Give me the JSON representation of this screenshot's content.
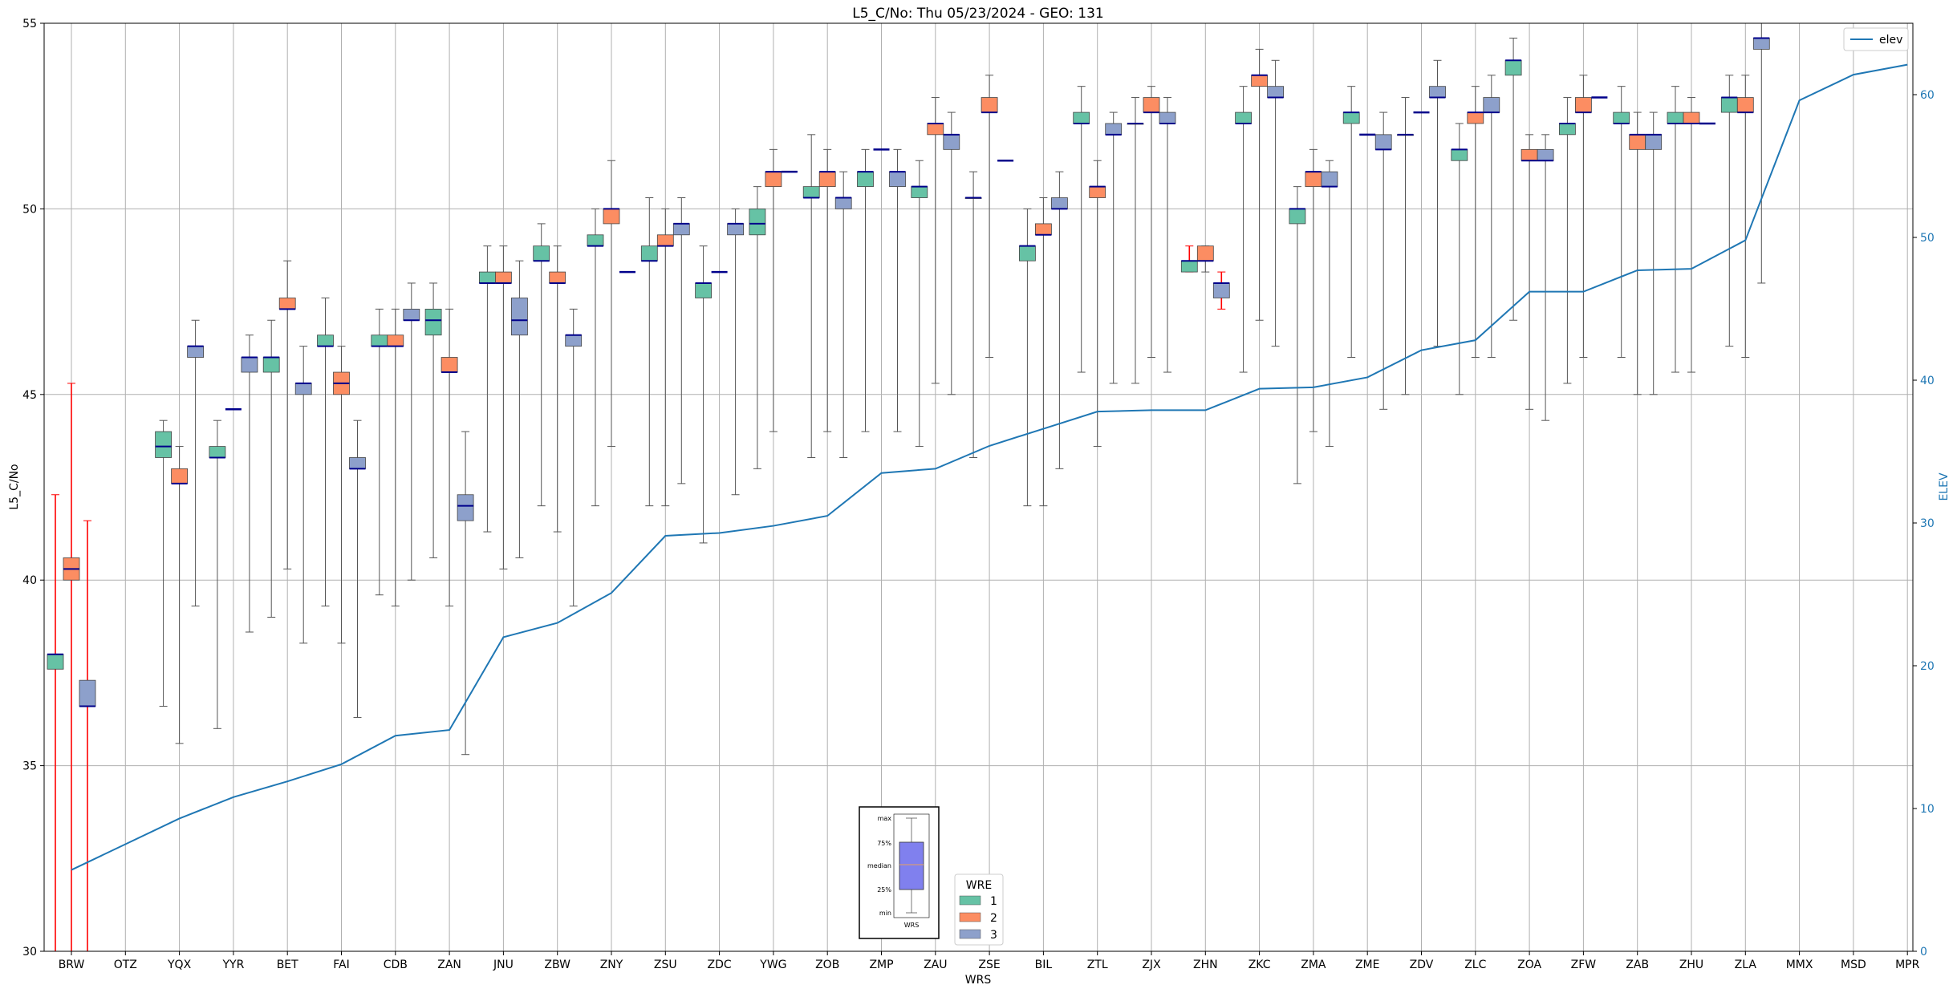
{
  "chart_data": {
    "type": "box",
    "title": "L5_C/No: Thu 05/23/2024 - GEO: 131",
    "xlabel": "WRS",
    "ylabel": "L5_C/No",
    "y2label": "ELEV",
    "ylim": [
      30,
      55
    ],
    "y2lim": [
      0,
      65
    ],
    "yticks": [
      30,
      35,
      40,
      45,
      50,
      55
    ],
    "y2ticks": [
      0,
      10,
      20,
      30,
      40,
      50,
      60
    ],
    "grid": true,
    "categories": [
      "BRW",
      "OTZ",
      "YQX",
      "YYR",
      "BET",
      "FAI",
      "CDB",
      "ZAN",
      "JNU",
      "ZBW",
      "ZNY",
      "ZSU",
      "ZDC",
      "YWG",
      "ZOB",
      "ZMP",
      "ZAU",
      "ZSE",
      "BIL",
      "ZTL",
      "ZJX",
      "ZHN",
      "ZKC",
      "ZMA",
      "ZME",
      "ZDV",
      "ZLC",
      "ZOA",
      "ZFW",
      "ZAB",
      "ZHU",
      "ZLA",
      "MMX",
      "MSD",
      "MPR"
    ],
    "colors": {
      "wre1": "#66c2a5",
      "wre2": "#fc8d62",
      "wre3": "#8da0cb",
      "median": "#00008b",
      "whisker": "#555555",
      "whisker_alert": "#ff0000",
      "elev": "#1f77b4",
      "inset_box": "#8080ee",
      "grid": "#b0b0b0"
    },
    "legend_elev": {
      "label": "elev",
      "position": "upper-right"
    },
    "legend_wre": {
      "title": "WRE",
      "labels": [
        "1",
        "2",
        "3"
      ],
      "position": "lower-center"
    },
    "inset_legend": {
      "labels": [
        "max",
        "75%",
        "median",
        "25%",
        "min"
      ],
      "xlabel": "WRS"
    },
    "series": [
      {
        "name": "WRE 1",
        "boxes": [
          {
            "cat": "BRW",
            "min": 30,
            "q1": 37.6,
            "median": 38.0,
            "q3": 38.0,
            "max": 42.3,
            "alert": true
          },
          {
            "cat": "YQX",
            "min": 36.6,
            "q1": 43.3,
            "median": 43.6,
            "q3": 44.0,
            "max": 44.3
          },
          {
            "cat": "YYR",
            "min": 36.0,
            "q1": 43.3,
            "median": 43.3,
            "q3": 43.6,
            "max": 44.3
          },
          {
            "cat": "BET",
            "min": 39.0,
            "q1": 45.6,
            "median": 46.0,
            "q3": 46.0,
            "max": 47.0
          },
          {
            "cat": "FAI",
            "min": 39.3,
            "q1": 46.3,
            "median": 46.3,
            "q3": 46.6,
            "max": 47.6
          },
          {
            "cat": "CDB",
            "min": 39.6,
            "q1": 46.3,
            "median": 46.3,
            "q3": 46.6,
            "max": 47.3
          },
          {
            "cat": "ZAN",
            "min": 40.6,
            "q1": 46.6,
            "median": 47.0,
            "q3": 47.3,
            "max": 48.0
          },
          {
            "cat": "JNU",
            "min": 41.3,
            "q1": 48.0,
            "median": 48.0,
            "q3": 48.3,
            "max": 49.0
          },
          {
            "cat": "ZBW",
            "min": 42.0,
            "q1": 48.6,
            "median": 48.6,
            "q3": 49.0,
            "max": 49.6
          },
          {
            "cat": "ZNY",
            "min": 42.0,
            "q1": 49.0,
            "median": 49.0,
            "q3": 49.3,
            "max": 50.0
          },
          {
            "cat": "ZSU",
            "min": 42.0,
            "q1": 48.6,
            "median": 48.6,
            "q3": 49.0,
            "max": 50.3
          },
          {
            "cat": "ZDC",
            "min": 41.0,
            "q1": 47.6,
            "median": 48.0,
            "q3": 48.0,
            "max": 49.0
          },
          {
            "cat": "YWG",
            "min": 43.0,
            "q1": 49.3,
            "median": 49.6,
            "q3": 50.0,
            "max": 50.6
          },
          {
            "cat": "ZOB",
            "min": 43.3,
            "q1": 50.3,
            "median": 50.3,
            "q3": 50.6,
            "max": 52.0
          },
          {
            "cat": "ZMP",
            "min": 44.0,
            "q1": 50.6,
            "median": 51.0,
            "q3": 51.0,
            "max": 51.6
          },
          {
            "cat": "ZAU",
            "min": 43.6,
            "q1": 50.3,
            "median": 50.6,
            "q3": 50.6,
            "max": 51.3
          },
          {
            "cat": "ZSE",
            "min": 43.3,
            "q1": 50.3,
            "median": 50.3,
            "q3": 50.3,
            "max": 51.0
          },
          {
            "cat": "BIL",
            "min": 42.0,
            "q1": 48.6,
            "median": 49.0,
            "q3": 49.0,
            "max": 50.0
          },
          {
            "cat": "ZTL",
            "min": 45.6,
            "q1": 52.3,
            "median": 52.3,
            "q3": 52.6,
            "max": 53.3
          },
          {
            "cat": "ZJX",
            "min": 45.3,
            "q1": 52.3,
            "median": 52.3,
            "q3": 52.3,
            "max": 53.0
          },
          {
            "cat": "ZHN",
            "min": 48.3,
            "q1": 48.3,
            "median": 48.6,
            "q3": 48.6,
            "max": 49.0,
            "alert": true
          },
          {
            "cat": "ZKC",
            "min": 45.6,
            "q1": 52.3,
            "median": 52.3,
            "q3": 52.6,
            "max": 53.3
          },
          {
            "cat": "ZMA",
            "min": 42.6,
            "q1": 49.6,
            "median": 50.0,
            "q3": 50.0,
            "max": 50.6
          },
          {
            "cat": "ZME",
            "min": 46.0,
            "q1": 52.3,
            "median": 52.6,
            "q3": 52.6,
            "max": 53.3
          },
          {
            "cat": "ZDV",
            "min": 45.0,
            "q1": 52.0,
            "median": 52.0,
            "q3": 52.0,
            "max": 53.0
          },
          {
            "cat": "ZLC",
            "min": 45.0,
            "q1": 51.3,
            "median": 51.6,
            "q3": 51.6,
            "max": 52.3
          },
          {
            "cat": "ZOA",
            "min": 47.0,
            "q1": 53.6,
            "median": 54.0,
            "q3": 54.0,
            "max": 54.6
          },
          {
            "cat": "ZFW",
            "min": 45.3,
            "q1": 52.0,
            "median": 52.3,
            "q3": 52.3,
            "max": 53.0
          },
          {
            "cat": "ZAB",
            "min": 46.0,
            "q1": 52.3,
            "median": 52.3,
            "q3": 52.6,
            "max": 53.3
          },
          {
            "cat": "ZHU",
            "min": 45.6,
            "q1": 52.3,
            "median": 52.3,
            "q3": 52.6,
            "max": 53.3
          },
          {
            "cat": "ZLA",
            "min": 46.3,
            "q1": 52.6,
            "median": 53.0,
            "q3": 53.0,
            "max": 53.6
          }
        ]
      },
      {
        "name": "WRE 2",
        "boxes": [
          {
            "cat": "BRW",
            "min": 30,
            "q1": 40.0,
            "median": 40.3,
            "q3": 40.6,
            "max": 45.3,
            "alert": true
          },
          {
            "cat": "YQX",
            "min": 35.6,
            "q1": 42.6,
            "median": 42.6,
            "q3": 43.0,
            "max": 43.6
          },
          {
            "cat": "BET",
            "min": 40.3,
            "q1": 47.3,
            "median": 47.3,
            "q3": 47.6,
            "max": 48.6
          },
          {
            "cat": "FAI",
            "min": 38.3,
            "q1": 45.0,
            "median": 45.3,
            "q3": 45.6,
            "max": 46.3
          },
          {
            "cat": "CDB",
            "min": 39.3,
            "q1": 46.3,
            "median": 46.3,
            "q3": 46.6,
            "max": 47.3
          },
          {
            "cat": "ZAN",
            "min": 39.3,
            "q1": 45.6,
            "median": 45.6,
            "q3": 46.0,
            "max": 47.3
          },
          {
            "cat": "JNU",
            "min": 40.3,
            "q1": 48.0,
            "median": 48.0,
            "q3": 48.3,
            "max": 49.0
          },
          {
            "cat": "ZBW",
            "min": 41.3,
            "q1": 48.0,
            "median": 48.0,
            "q3": 48.3,
            "max": 49.0
          },
          {
            "cat": "ZNY",
            "min": 43.6,
            "q1": 49.6,
            "median": 50.0,
            "q3": 50.0,
            "max": 51.3
          },
          {
            "cat": "ZSU",
            "min": 42.0,
            "q1": 49.0,
            "median": 49.0,
            "q3": 49.3,
            "max": 50.0
          },
          {
            "cat": "YWG",
            "min": 44.0,
            "q1": 50.6,
            "median": 51.0,
            "q3": 51.0,
            "max": 51.6
          },
          {
            "cat": "ZOB",
            "min": 44.0,
            "q1": 50.6,
            "median": 51.0,
            "q3": 51.0,
            "max": 51.6
          },
          {
            "cat": "ZAU",
            "min": 45.3,
            "q1": 52.0,
            "median": 52.3,
            "q3": 52.3,
            "max": 53.0
          },
          {
            "cat": "ZSE",
            "min": 46.0,
            "q1": 52.6,
            "median": 52.6,
            "q3": 53.0,
            "max": 53.6
          },
          {
            "cat": "BIL",
            "min": 42.0,
            "q1": 49.3,
            "median": 49.3,
            "q3": 49.6,
            "max": 50.3
          },
          {
            "cat": "ZTL",
            "min": 43.6,
            "q1": 50.3,
            "median": 50.6,
            "q3": 50.6,
            "max": 51.3
          },
          {
            "cat": "ZJX",
            "min": 46.0,
            "q1": 52.6,
            "median": 52.6,
            "q3": 53.0,
            "max": 53.3
          },
          {
            "cat": "ZHN",
            "min": 48.3,
            "q1": 48.6,
            "median": 48.6,
            "q3": 49.0,
            "max": 49.0
          },
          {
            "cat": "ZKC",
            "min": 47.0,
            "q1": 53.3,
            "median": 53.6,
            "q3": 53.6,
            "max": 54.3
          },
          {
            "cat": "ZMA",
            "min": 44.0,
            "q1": 50.6,
            "median": 51.0,
            "q3": 51.0,
            "max": 51.6
          },
          {
            "cat": "ZLC",
            "min": 46.0,
            "q1": 52.3,
            "median": 52.6,
            "q3": 52.6,
            "max": 53.3
          },
          {
            "cat": "ZOA",
            "min": 44.6,
            "q1": 51.3,
            "median": 51.3,
            "q3": 51.6,
            "max": 52.0
          },
          {
            "cat": "ZFW",
            "min": 46.0,
            "q1": 52.6,
            "median": 52.6,
            "q3": 53.0,
            "max": 53.6
          },
          {
            "cat": "ZAB",
            "min": 45.0,
            "q1": 51.6,
            "median": 52.0,
            "q3": 52.0,
            "max": 52.6
          },
          {
            "cat": "ZHU",
            "min": 45.6,
            "q1": 52.3,
            "median": 52.3,
            "q3": 52.6,
            "max": 53.0
          },
          {
            "cat": "ZLA",
            "min": 46.0,
            "q1": 52.6,
            "median": 52.6,
            "q3": 53.0,
            "max": 53.6
          }
        ]
      },
      {
        "name": "WRE 3",
        "boxes": [
          {
            "cat": "BRW",
            "min": 30,
            "q1": 36.6,
            "median": 36.6,
            "q3": 37.3,
            "max": 41.6,
            "alert": true
          },
          {
            "cat": "YQX",
            "min": 39.3,
            "q1": 46.0,
            "median": 46.3,
            "q3": 46.3,
            "max": 47.0
          },
          {
            "cat": "YYR",
            "min": 38.6,
            "q1": 45.6,
            "median": 46.0,
            "q3": 46.0,
            "max": 46.6
          },
          {
            "cat": "BET",
            "min": 38.3,
            "q1": 45.0,
            "median": 45.3,
            "q3": 45.3,
            "max": 46.3
          },
          {
            "cat": "FAI",
            "min": 36.3,
            "q1": 43.0,
            "median": 43.0,
            "q3": 43.3,
            "max": 44.3
          },
          {
            "cat": "CDB",
            "min": 40.0,
            "q1": 47.0,
            "median": 47.0,
            "q3": 47.3,
            "max": 48.0
          },
          {
            "cat": "ZAN",
            "min": 35.3,
            "q1": 41.6,
            "median": 42.0,
            "q3": 42.3,
            "max": 44.0
          },
          {
            "cat": "JNU",
            "min": 40.6,
            "q1": 46.6,
            "median": 47.0,
            "q3": 47.6,
            "max": 48.6
          },
          {
            "cat": "ZBW",
            "min": 39.3,
            "q1": 46.3,
            "median": 46.6,
            "q3": 46.6,
            "max": 47.3
          },
          {
            "cat": "ZSU",
            "min": 42.6,
            "q1": 49.3,
            "median": 49.6,
            "q3": 49.6,
            "max": 50.3
          },
          {
            "cat": "ZDC",
            "min": 42.3,
            "q1": 49.3,
            "median": 49.6,
            "q3": 49.6,
            "max": 50.0
          },
          {
            "cat": "ZOB",
            "min": 43.3,
            "q1": 50.0,
            "median": 50.3,
            "q3": 50.3,
            "max": 51.0
          },
          {
            "cat": "ZMP",
            "min": 44.0,
            "q1": 50.6,
            "median": 51.0,
            "q3": 51.0,
            "max": 51.6
          },
          {
            "cat": "ZAU",
            "min": 45.0,
            "q1": 51.6,
            "median": 52.0,
            "q3": 52.0,
            "max": 52.6
          },
          {
            "cat": "BIL",
            "min": 43.0,
            "q1": 50.0,
            "median": 50.0,
            "q3": 50.3,
            "max": 51.0
          },
          {
            "cat": "ZTL",
            "min": 45.3,
            "q1": 52.0,
            "median": 52.0,
            "q3": 52.3,
            "max": 52.6
          },
          {
            "cat": "ZJX",
            "min": 45.6,
            "q1": 52.3,
            "median": 52.3,
            "q3": 52.6,
            "max": 53.0
          },
          {
            "cat": "ZHN",
            "min": 47.3,
            "q1": 47.6,
            "median": 48.0,
            "q3": 48.0,
            "max": 48.3,
            "alert": true
          },
          {
            "cat": "ZKC",
            "min": 46.3,
            "q1": 53.0,
            "median": 53.0,
            "q3": 53.3,
            "max": 54.0
          },
          {
            "cat": "ZMA",
            "min": 43.6,
            "q1": 50.6,
            "median": 50.6,
            "q3": 51.0,
            "max": 51.3
          },
          {
            "cat": "ZME",
            "min": 44.6,
            "q1": 51.6,
            "median": 51.6,
            "q3": 52.0,
            "max": 52.6
          },
          {
            "cat": "ZDV",
            "min": 46.3,
            "q1": 53.0,
            "median": 53.0,
            "q3": 53.3,
            "max": 54.0
          },
          {
            "cat": "ZLC",
            "min": 46.0,
            "q1": 52.6,
            "median": 52.6,
            "q3": 53.0,
            "max": 53.6
          },
          {
            "cat": "ZOA",
            "min": 44.3,
            "q1": 51.3,
            "median": 51.3,
            "q3": 51.6,
            "max": 52.0
          },
          {
            "cat": "ZAB",
            "min": 45.0,
            "q1": 51.6,
            "median": 52.0,
            "q3": 52.0,
            "max": 52.6
          },
          {
            "cat": "ZLA",
            "min": 48.0,
            "q1": 54.3,
            "median": 54.6,
            "q3": 54.6,
            "max": 55.0
          }
        ]
      }
    ],
    "flat_medians": [
      {
        "cat": "YYR",
        "wre": 2,
        "value": 44.6
      },
      {
        "cat": "ZNY",
        "wre": 3,
        "value": 48.3
      },
      {
        "cat": "ZDC",
        "wre": 2,
        "value": 48.3
      },
      {
        "cat": "YWG",
        "wre": 3,
        "value": 51.0
      },
      {
        "cat": "ZMP",
        "wre": 2,
        "value": 51.6
      },
      {
        "cat": "ZSE",
        "wre": 3,
        "value": 51.3
      },
      {
        "cat": "ZME",
        "wre": 2,
        "value": 52.0
      },
      {
        "cat": "ZDV",
        "wre": 2,
        "value": 52.6
      },
      {
        "cat": "ZFW",
        "wre": 3,
        "value": 53.0
      },
      {
        "cat": "ZHU",
        "wre": 3,
        "value": 52.3
      }
    ],
    "elev": {
      "name": "elev",
      "x": [
        "BRW",
        "OTZ",
        "YQX",
        "YYR",
        "BET",
        "FAI",
        "CDB",
        "ZAN",
        "JNU",
        "ZBW",
        "ZNY",
        "ZSU",
        "ZDC",
        "YWG",
        "ZOB",
        "ZMP",
        "ZAU",
        "ZSE",
        "BIL",
        "ZTL",
        "ZJX",
        "ZHN",
        "ZKC",
        "ZMA",
        "ZME",
        "ZDV",
        "ZLC",
        "ZOA",
        "ZFW",
        "ZAB",
        "ZHU",
        "ZLA",
        "MMX",
        "MSD",
        "MPR"
      ],
      "values": [
        5.7,
        7.5,
        9.3,
        10.8,
        11.9,
        13.1,
        15.1,
        15.5,
        22.0,
        23.0,
        25.1,
        29.1,
        29.3,
        29.8,
        30.5,
        33.5,
        33.8,
        35.4,
        36.6,
        37.8,
        37.9,
        37.9,
        39.4,
        39.5,
        40.2,
        42.1,
        42.8,
        46.2,
        46.2,
        47.7,
        47.8,
        49.8,
        59.6,
        61.4,
        62.1
      ]
    }
  }
}
